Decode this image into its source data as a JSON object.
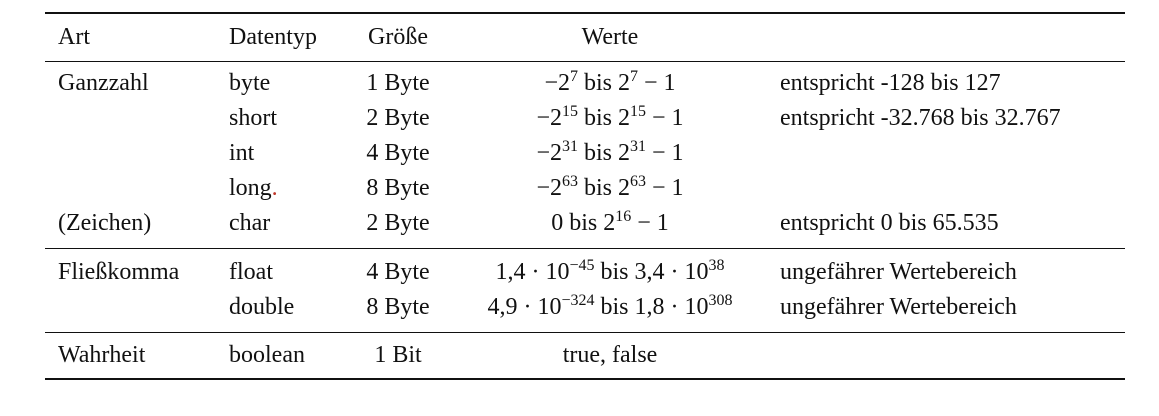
{
  "headers": {
    "art": "Art",
    "typ": "Datentyp",
    "size": "Größe",
    "val": "Werte"
  },
  "rows": [
    {
      "art": "Ganzzahl",
      "typ": "byte",
      "size": "1 Byte",
      "val": {
        "a": "−2",
        "a_exp": "7",
        "mid": " bis 2",
        "b_exp": "7",
        "tail": " − 1"
      },
      "note": "entspricht -128 bis 127"
    },
    {
      "art": "",
      "typ": "short",
      "size": "2 Byte",
      "val": {
        "a": "−2",
        "a_exp": "15",
        "mid": " bis 2",
        "b_exp": "15",
        "tail": " − 1"
      },
      "note": "entspricht -32.768 bis 32.767"
    },
    {
      "art": "",
      "typ": "int",
      "size": "4 Byte",
      "val": {
        "a": "−2",
        "a_exp": "31",
        "mid": " bis 2",
        "b_exp": "31",
        "tail": " − 1"
      },
      "note": ""
    },
    {
      "art": "",
      "typ": "long",
      "typ_mark": ".",
      "size": "8 Byte",
      "val": {
        "a": "−2",
        "a_exp": "63",
        "mid": " bis 2",
        "b_exp": "63",
        "tail": " − 1"
      },
      "note": ""
    },
    {
      "art": "(Zeichen)",
      "typ": "char",
      "size": "2 Byte",
      "val": {
        "a": "0 bis 2",
        "a_exp": "16",
        "mid": " − 1",
        "b_exp": "",
        "tail": ""
      },
      "note": "entspricht 0 bis 65.535"
    },
    {
      "art": "Fließkomma",
      "typ": "float",
      "size": "4 Byte",
      "val": {
        "a": "1,4 · 10",
        "a_exp": "−45",
        "mid": " bis 3,4 · 10",
        "b_exp": "38",
        "tail": ""
      },
      "note": "ungefährer Wertebereich"
    },
    {
      "art": "",
      "typ": "double",
      "size": "8 Byte",
      "val": {
        "a": "4,9 · 10",
        "a_exp": "−324",
        "mid": " bis 1,8 · 10",
        "b_exp": "308",
        "tail": ""
      },
      "note": "ungefährer Wertebereich"
    },
    {
      "art": "Wahrheit",
      "typ": "boolean",
      "size": "1 Bit",
      "val": {
        "a": "true, false",
        "a_exp": "",
        "mid": "",
        "b_exp": "",
        "tail": ""
      },
      "note": ""
    }
  ]
}
